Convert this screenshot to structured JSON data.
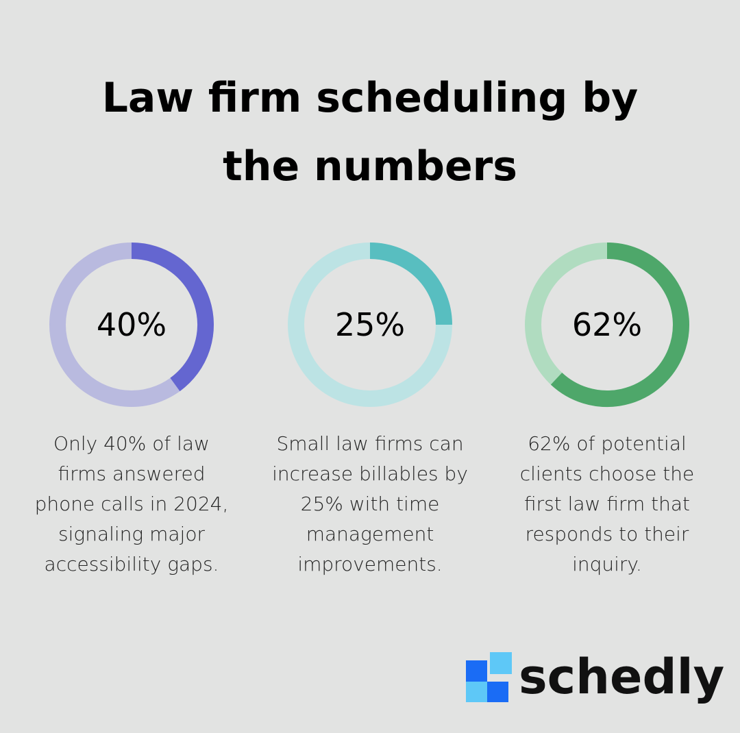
{
  "title": "Law firm scheduling by the numbers",
  "stats": [
    {
      "type": "donut",
      "value": 40,
      "value_label": "40%",
      "color": "#6466d0",
      "track_color": "#b9badf",
      "description": [
        "Only 40% of law",
        "firms answered",
        "phone calls in 2024,",
        "signaling major",
        "accessibility gaps."
      ]
    },
    {
      "type": "donut",
      "value": 25,
      "value_label": "25%",
      "color": "#58bec0",
      "track_color": "#bce3e4",
      "description": [
        "Small law firms can",
        "increase billables by",
        "25% with time",
        "management",
        "improvements."
      ]
    },
    {
      "type": "donut",
      "value": 62,
      "value_label": "62%",
      "color": "#4ea76a",
      "track_color": "#b0dcc0",
      "description": [
        "62% of potential",
        "clients choose the",
        "first law firm that",
        "responds to their",
        "inquiry."
      ]
    }
  ],
  "brand": "schedly"
}
